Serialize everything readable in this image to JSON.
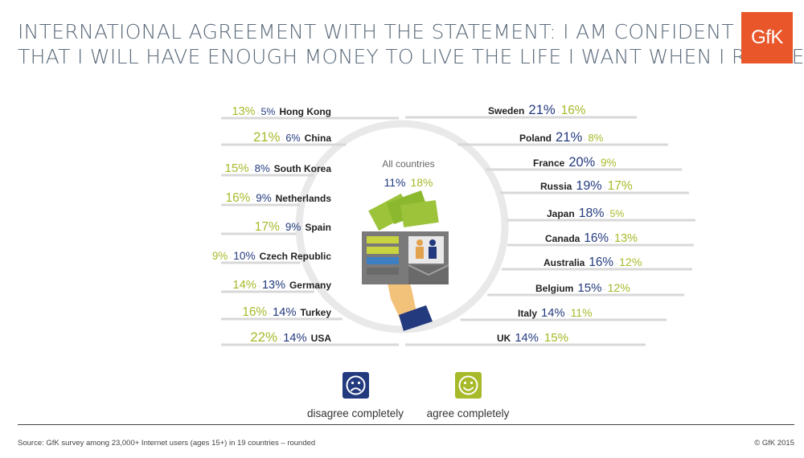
{
  "title_lines": [
    "INTERNATIONAL AGREEMENT WITH THE STATEMENT: I AM CONFIDENT",
    "THAT I WILL HAVE ENOUGH MONEY TO LIVE THE LIFE I WANT WHEN I RETIRE"
  ],
  "logo_text": "GfK",
  "colors": {
    "agree": "#a8b929",
    "disagree": "#233a7e",
    "circle": "#e9e9e9",
    "line": "#d8d8d8",
    "brand": "#e8562a"
  },
  "legend": {
    "disagree_label": "disagree completely",
    "agree_label": "agree completely",
    "disagree_icon": "sad-face-icon",
    "agree_icon": "happy-face-icon"
  },
  "center_illustration": "wallet-with-money-and-retirees-icon",
  "source": "Source: GfK survey among 23,000+ Internet users (ages 15+) in 19 countries – rounded",
  "copyright": "© GfK 2015",
  "chart_data": {
    "type": "table",
    "value_unit": "%",
    "overall": {
      "label": "All countries",
      "disagree": 11,
      "agree": 18
    },
    "left_countries": [
      {
        "country": "Hong Kong",
        "agree": 13,
        "disagree": 5
      },
      {
        "country": "China",
        "agree": 21,
        "disagree": 6
      },
      {
        "country": "South Korea",
        "agree": 15,
        "disagree": 8
      },
      {
        "country": "Netherlands",
        "agree": 16,
        "disagree": 9
      },
      {
        "country": "Spain",
        "agree": 17,
        "disagree": 9
      },
      {
        "country": "Czech Republic",
        "agree": 9,
        "disagree": 10
      },
      {
        "country": "Germany",
        "agree": 14,
        "disagree": 13
      },
      {
        "country": "Turkey",
        "agree": 16,
        "disagree": 14
      },
      {
        "country": "USA",
        "agree": 22,
        "disagree": 14
      }
    ],
    "right_countries": [
      {
        "country": "Sweden",
        "disagree": 21,
        "agree": 16
      },
      {
        "country": "Poland",
        "disagree": 21,
        "agree": 8
      },
      {
        "country": "France",
        "disagree": 20,
        "agree": 9
      },
      {
        "country": "Russia",
        "disagree": 19,
        "agree": 17
      },
      {
        "country": "Japan",
        "disagree": 18,
        "agree": 5
      },
      {
        "country": "Canada",
        "disagree": 16,
        "agree": 13
      },
      {
        "country": "Australia",
        "disagree": 16,
        "agree": 12
      },
      {
        "country": "Belgium",
        "disagree": 15,
        "agree": 12
      },
      {
        "country": "Italy",
        "disagree": 14,
        "agree": 11
      },
      {
        "country": "UK",
        "disagree": 14,
        "agree": 15
      }
    ]
  }
}
